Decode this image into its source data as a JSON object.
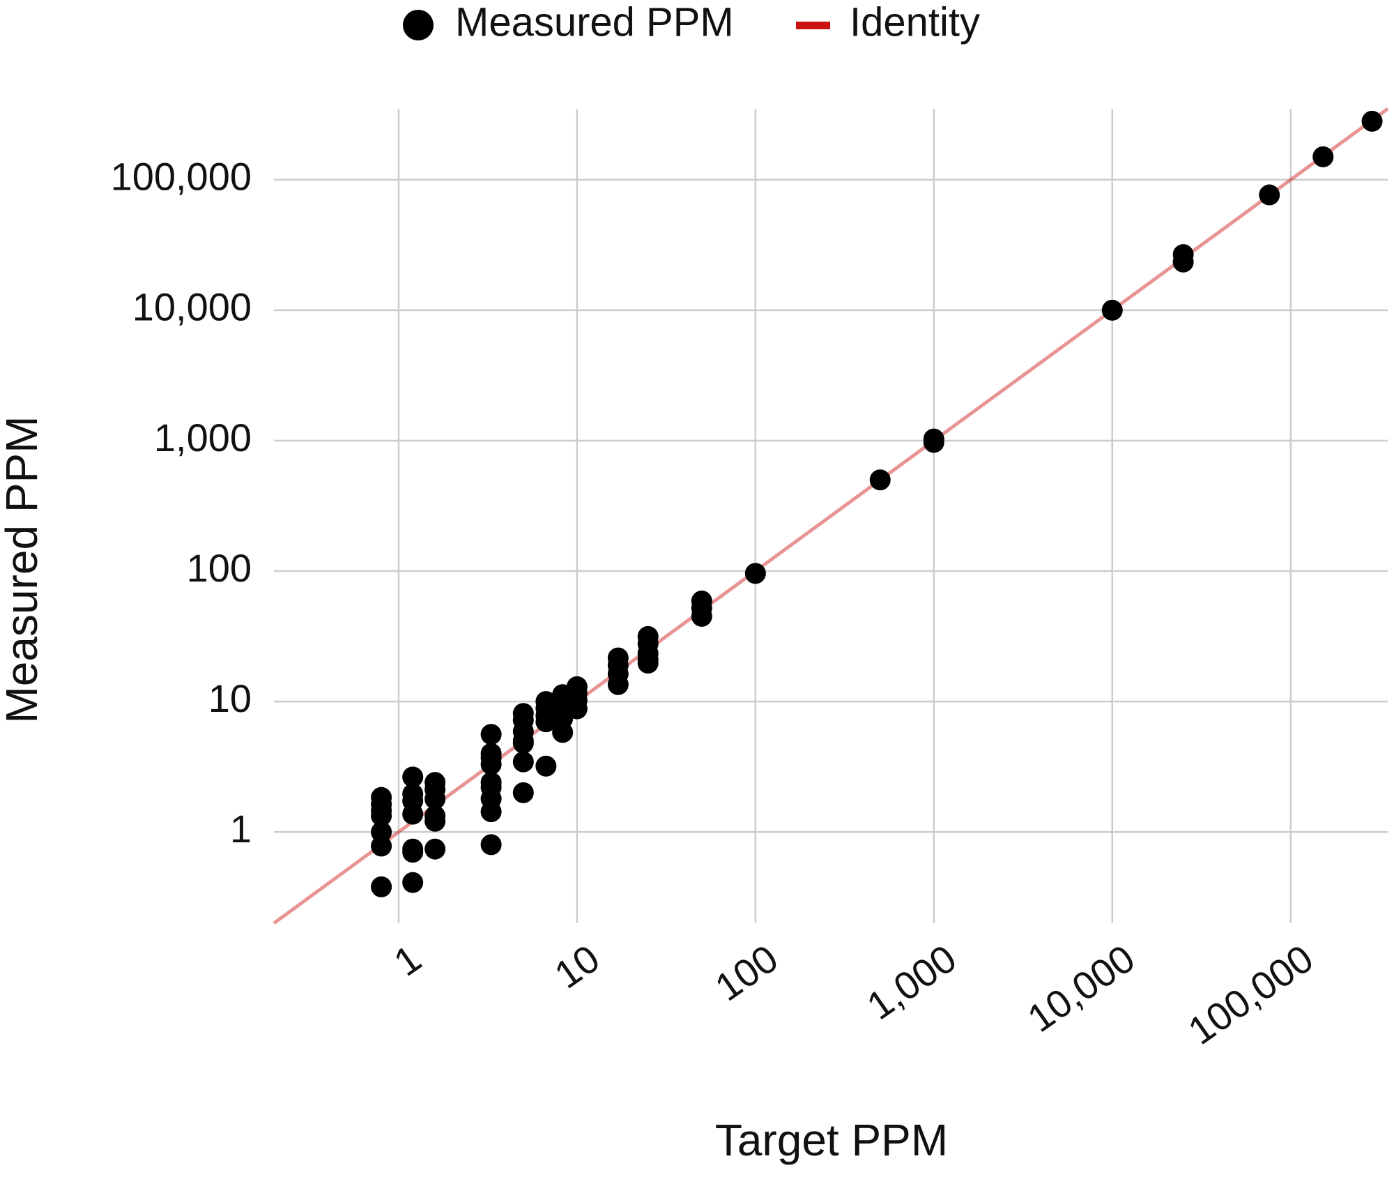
{
  "chart_data": {
    "type": "scatter",
    "x_label": "Target PPM",
    "y_label": "Measured PPM",
    "log_x": true,
    "log_y": true,
    "grid": true,
    "legend": "top",
    "xlim": [
      0.2,
      350000
    ],
    "ylim": [
      0.2,
      350000
    ],
    "xticks": [
      1,
      10,
      100,
      {
        "value": 1000,
        "label": "1,000"
      },
      {
        "value": 10000,
        "label": "10,000"
      },
      {
        "value": 100000,
        "label": "100,000"
      }
    ],
    "yticks": [
      1,
      10,
      100,
      {
        "value": 1000,
        "label": "1,000"
      },
      {
        "value": 10000,
        "label": "10,000"
      },
      {
        "value": 100000,
        "label": "100,000"
      }
    ],
    "series": [
      {
        "name": "Measured PPM",
        "color": "#000000",
        "x": [
          0.8,
          0.8,
          0.8,
          0.8,
          0.8,
          0.8,
          0.8,
          1.2,
          1.2,
          1.2,
          1.2,
          1.2,
          1.2,
          1.2,
          1.6,
          1.6,
          1.6,
          1.6,
          1.6,
          1.6,
          3.3,
          3.3,
          3.3,
          3.3,
          3.3,
          3.3,
          3.3,
          3.3,
          3.3,
          5,
          5,
          5,
          5,
          5,
          5,
          5,
          6.7,
          6.7,
          6.7,
          6.7,
          6.7,
          8.3,
          8.3,
          8.3,
          8.3,
          8.3,
          10,
          10,
          10,
          10,
          17,
          17,
          17,
          17,
          25,
          25,
          25,
          25,
          25,
          50,
          50,
          50,
          100,
          500,
          1000,
          1000,
          10000,
          25000,
          25000,
          76000,
          152000,
          286000
        ],
        "values": [
          1.84,
          1.63,
          1.46,
          1.33,
          1.0,
          0.78,
          0.38,
          2.64,
          1.96,
          1.73,
          1.37,
          0.74,
          0.7,
          0.41,
          2.4,
          2.12,
          1.79,
          1.33,
          1.21,
          0.74,
          5.6,
          4.0,
          3.7,
          3.3,
          2.4,
          2.2,
          1.8,
          1.43,
          0.8,
          8.1,
          7.2,
          5.9,
          5.0,
          4.8,
          3.45,
          2.0,
          10,
          8.9,
          7.8,
          7.0,
          3.2,
          11.3,
          10,
          9.0,
          7.4,
          5.8,
          13,
          11.5,
          10.2,
          8.8,
          21.6,
          19.0,
          16.3,
          13.5,
          31.5,
          27.8,
          23.4,
          21.0,
          19.7,
          59,
          52,
          45,
          96,
          500,
          1030,
          970,
          10000,
          26700,
          23400,
          76500,
          150000,
          281000
        ]
      }
    ],
    "reference_line": {
      "name": "Identity",
      "color": "#cc1111",
      "alpha": 0.45
    }
  }
}
